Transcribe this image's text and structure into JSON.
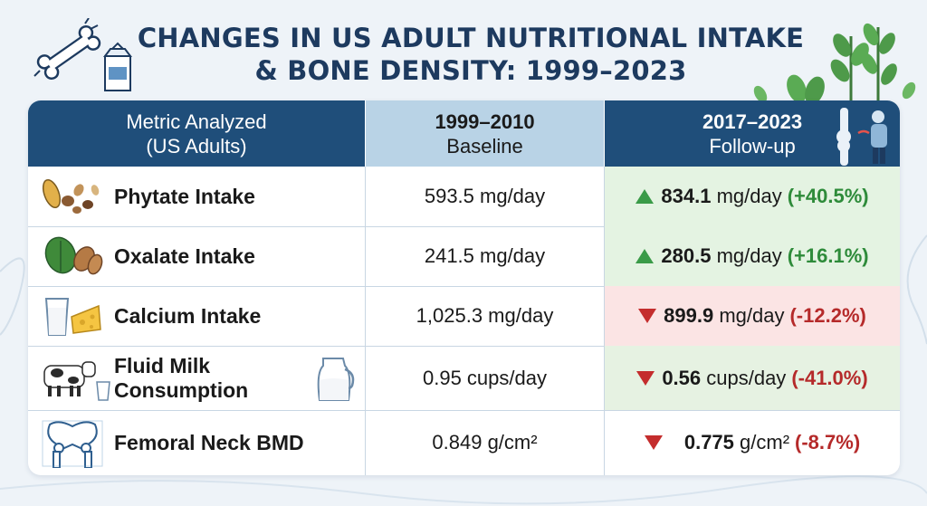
{
  "title_line1": "CHANGES IN US ADULT NUTRITIONAL INTAKE",
  "title_line2": "& BONE DENSITY: 1999–2023",
  "columns": {
    "metric": {
      "line1": "Metric Analyzed",
      "line2": "(US Adults)"
    },
    "baseline": {
      "line1": "1999–2010",
      "line2": "Baseline"
    },
    "followup": {
      "line1": "2017–2023",
      "line2": "Follow-up"
    }
  },
  "rows": [
    {
      "label": "Phytate Intake",
      "baseline": "593.5 mg/day",
      "followup_value": "834.1",
      "followup_unit": " mg/day",
      "change": "(+40.5%)",
      "direction": "up",
      "icon": "grains-nuts-icon"
    },
    {
      "label": "Oxalate Intake",
      "baseline": "241.5 mg/day",
      "followup_value": "280.5",
      "followup_unit": " mg/day",
      "change": "(+16.1%)",
      "direction": "up",
      "icon": "spinach-almond-icon"
    },
    {
      "label": "Calcium Intake",
      "baseline": "1,025.3 mg/day",
      "followup_value": "899.9",
      "followup_unit": " mg/day",
      "change": "(-12.2%)",
      "direction": "down",
      "icon": "milk-cheese-icon"
    },
    {
      "label_line1": "Fluid Milk",
      "label_line2": "Consumption",
      "baseline": "0.95 cups/day",
      "followup_value": "0.56",
      "followup_unit": " cups/day",
      "change": "(-41.0%)",
      "direction": "down",
      "icon": "cow-milk-icon"
    },
    {
      "label": "Femoral Neck BMD",
      "baseline": "0.849 g/cm²",
      "followup_value": "0.775",
      "followup_unit": " g/cm²",
      "change": "(-8.7%)",
      "direction": "down",
      "icon": "pelvis-bone-icon"
    }
  ],
  "colors": {
    "header_dark": "#1f4e7a",
    "header_light": "#b9d3e6",
    "title": "#1d3a5f",
    "up_green": "#3a9b48",
    "down_red": "#c42d2d"
  }
}
